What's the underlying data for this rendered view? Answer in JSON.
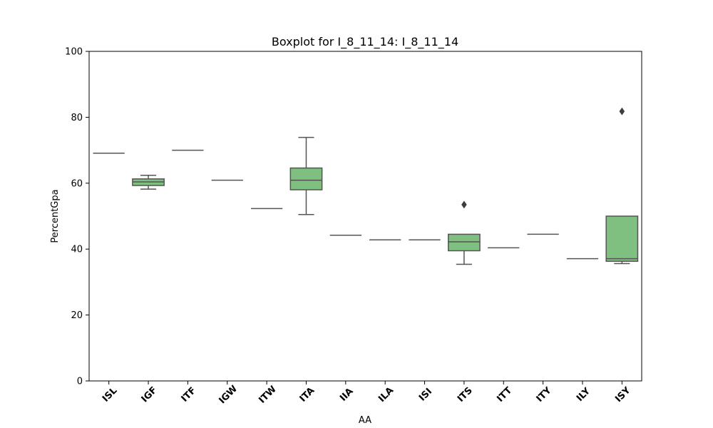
{
  "chart_data": {
    "type": "boxplot",
    "title": "Boxplot for I_8_11_14: I_8_11_14",
    "xlabel": "AA",
    "ylabel": "PercentGpa",
    "ylim": [
      0,
      100
    ],
    "yticks": [
      0,
      20,
      40,
      60,
      80,
      100
    ],
    "grid": false,
    "box_color": "#7fbf7f",
    "line_color": "#555555",
    "categories": [
      "ISL",
      "IGF",
      "ITF",
      "IGW",
      "ITW",
      "ITA",
      "IIA",
      "ILA",
      "ISI",
      "ITS",
      "ITT",
      "ITY",
      "ILY",
      "ISY"
    ],
    "boxes": [
      {
        "category": "ISL",
        "whisker_low": 69.1,
        "q1": 69.1,
        "median": 69.1,
        "q3": 69.1,
        "whisker_high": 69.1,
        "outliers": []
      },
      {
        "category": "IGF",
        "whisker_low": 58.2,
        "q1": 59.3,
        "median": 60.4,
        "q3": 61.3,
        "whisker_high": 62.4,
        "outliers": []
      },
      {
        "category": "ITF",
        "whisker_low": 70.0,
        "q1": 70.0,
        "median": 70.0,
        "q3": 70.0,
        "whisker_high": 70.0,
        "outliers": []
      },
      {
        "category": "IGW",
        "whisker_low": 60.9,
        "q1": 60.9,
        "median": 60.9,
        "q3": 60.9,
        "whisker_high": 60.9,
        "outliers": []
      },
      {
        "category": "ITW",
        "whisker_low": 52.3,
        "q1": 52.3,
        "median": 52.3,
        "q3": 52.3,
        "whisker_high": 52.3,
        "outliers": []
      },
      {
        "category": "ITA",
        "whisker_low": 50.5,
        "q1": 58.0,
        "median": 60.9,
        "q3": 64.6,
        "whisker_high": 73.9,
        "outliers": []
      },
      {
        "category": "IIA",
        "whisker_low": 44.2,
        "q1": 44.2,
        "median": 44.2,
        "q3": 44.2,
        "whisker_high": 44.2,
        "outliers": []
      },
      {
        "category": "ILA",
        "whisker_low": 42.8,
        "q1": 42.8,
        "median": 42.8,
        "q3": 42.8,
        "whisker_high": 42.8,
        "outliers": []
      },
      {
        "category": "ISI",
        "whisker_low": 42.8,
        "q1": 42.8,
        "median": 42.8,
        "q3": 42.8,
        "whisker_high": 42.8,
        "outliers": []
      },
      {
        "category": "ITS",
        "whisker_low": 35.4,
        "q1": 39.5,
        "median": 42.2,
        "q3": 44.5,
        "whisker_high": 44.5,
        "outliers": [
          53.5
        ]
      },
      {
        "category": "ITT",
        "whisker_low": 40.4,
        "q1": 40.4,
        "median": 40.4,
        "q3": 40.4,
        "whisker_high": 40.4,
        "outliers": []
      },
      {
        "category": "ITY",
        "whisker_low": 44.5,
        "q1": 44.5,
        "median": 44.5,
        "q3": 44.5,
        "whisker_high": 44.5,
        "outliers": []
      },
      {
        "category": "ILY",
        "whisker_low": 37.1,
        "q1": 37.1,
        "median": 37.1,
        "q3": 37.1,
        "whisker_high": 37.1,
        "outliers": []
      },
      {
        "category": "ISY",
        "whisker_low": 35.6,
        "q1": 36.3,
        "median": 37.1,
        "q3": 50.0,
        "whisker_high": 50.0,
        "outliers": [
          81.8
        ]
      }
    ]
  }
}
